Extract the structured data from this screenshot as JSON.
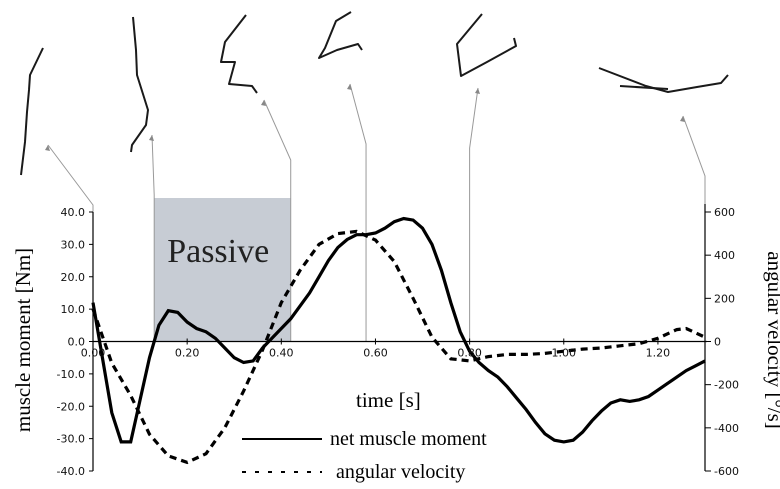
{
  "chart_data": {
    "type": "line",
    "xlabel": "time [s]",
    "ylabel_left": "muscle moment [Nm]",
    "ylabel_right": "angular velocity [°/s]",
    "x_ticks": [
      "0.00",
      "0.20",
      "0.40",
      "0.60",
      "0.80",
      "1.00",
      "1.20"
    ],
    "y_left_ticks": [
      "40.0",
      "30.0",
      "20.0",
      "10.0",
      "0.0",
      "-10.0",
      "-20.0",
      "-30.0",
      "-40.0"
    ],
    "y_right_ticks": [
      "600",
      "400",
      "200",
      "0",
      "-200",
      "-400",
      "-600"
    ],
    "xlim": [
      0,
      1.3
    ],
    "ylim_left": [
      -40,
      40
    ],
    "ylim_right": [
      -600,
      600
    ],
    "annotation": "Passive",
    "passive_range": [
      0.13,
      0.42
    ],
    "snapshot_times": [
      0.0,
      0.13,
      0.42,
      0.58,
      0.8,
      1.3
    ],
    "series": [
      {
        "name": "net muscle moment",
        "axis": "left",
        "style": "solid",
        "x": [
          0.0,
          0.02,
          0.04,
          0.06,
          0.08,
          0.1,
          0.12,
          0.14,
          0.16,
          0.18,
          0.2,
          0.22,
          0.24,
          0.26,
          0.28,
          0.3,
          0.32,
          0.34,
          0.36,
          0.38,
          0.4,
          0.42,
          0.44,
          0.46,
          0.48,
          0.5,
          0.52,
          0.54,
          0.56,
          0.58,
          0.6,
          0.62,
          0.64,
          0.66,
          0.68,
          0.7,
          0.72,
          0.74,
          0.76,
          0.78,
          0.8,
          0.82,
          0.84,
          0.86,
          0.88,
          0.9,
          0.92,
          0.94,
          0.96,
          0.98,
          1.0,
          1.02,
          1.04,
          1.06,
          1.08,
          1.1,
          1.12,
          1.14,
          1.16,
          1.18,
          1.2,
          1.22,
          1.24,
          1.26,
          1.28,
          1.3
        ],
        "values": [
          12.0,
          -5.0,
          -22.0,
          -31.0,
          -31.0,
          -18.0,
          -5.0,
          5.0,
          9.5,
          9.0,
          6.0,
          4.0,
          3.0,
          1.0,
          -2.0,
          -5.0,
          -6.5,
          -6.0,
          -2.0,
          1.0,
          4.0,
          7.0,
          11.0,
          15.0,
          20.0,
          25.0,
          29.0,
          31.5,
          33.0,
          33.0,
          33.5,
          35.0,
          37.0,
          38.0,
          37.5,
          35.0,
          30.0,
          22.0,
          12.0,
          3.0,
          -3.0,
          -6.5,
          -9.0,
          -11.0,
          -14.0,
          -17.5,
          -21.0,
          -25.0,
          -28.5,
          -30.5,
          -31.0,
          -30.5,
          -28.0,
          -24.5,
          -21.5,
          -19.0,
          -18.0,
          -18.5,
          -18.0,
          -17.0,
          -15.0,
          -13.0,
          -11.0,
          -9.0,
          -7.5,
          -6.0
        ]
      },
      {
        "name": "angular velocity",
        "axis": "right",
        "style": "dashed",
        "x": [
          0.0,
          0.04,
          0.08,
          0.12,
          0.16,
          0.2,
          0.24,
          0.28,
          0.32,
          0.36,
          0.4,
          0.44,
          0.48,
          0.52,
          0.56,
          0.6,
          0.64,
          0.68,
          0.72,
          0.76,
          0.8,
          0.84,
          0.88,
          0.92,
          0.96,
          1.0,
          1.04,
          1.08,
          1.12,
          1.16,
          1.2,
          1.22,
          1.24,
          1.26,
          1.28,
          1.3
        ],
        "values": [
          150,
          -100,
          -250,
          -430,
          -530,
          -560,
          -520,
          -400,
          -230,
          -40,
          180,
          330,
          450,
          500,
          510,
          470,
          370,
          200,
          20,
          -80,
          -90,
          -70,
          -60,
          -60,
          -55,
          -45,
          -35,
          -30,
          -20,
          -10,
          15,
          35,
          55,
          60,
          40,
          20
        ]
      }
    ]
  }
}
